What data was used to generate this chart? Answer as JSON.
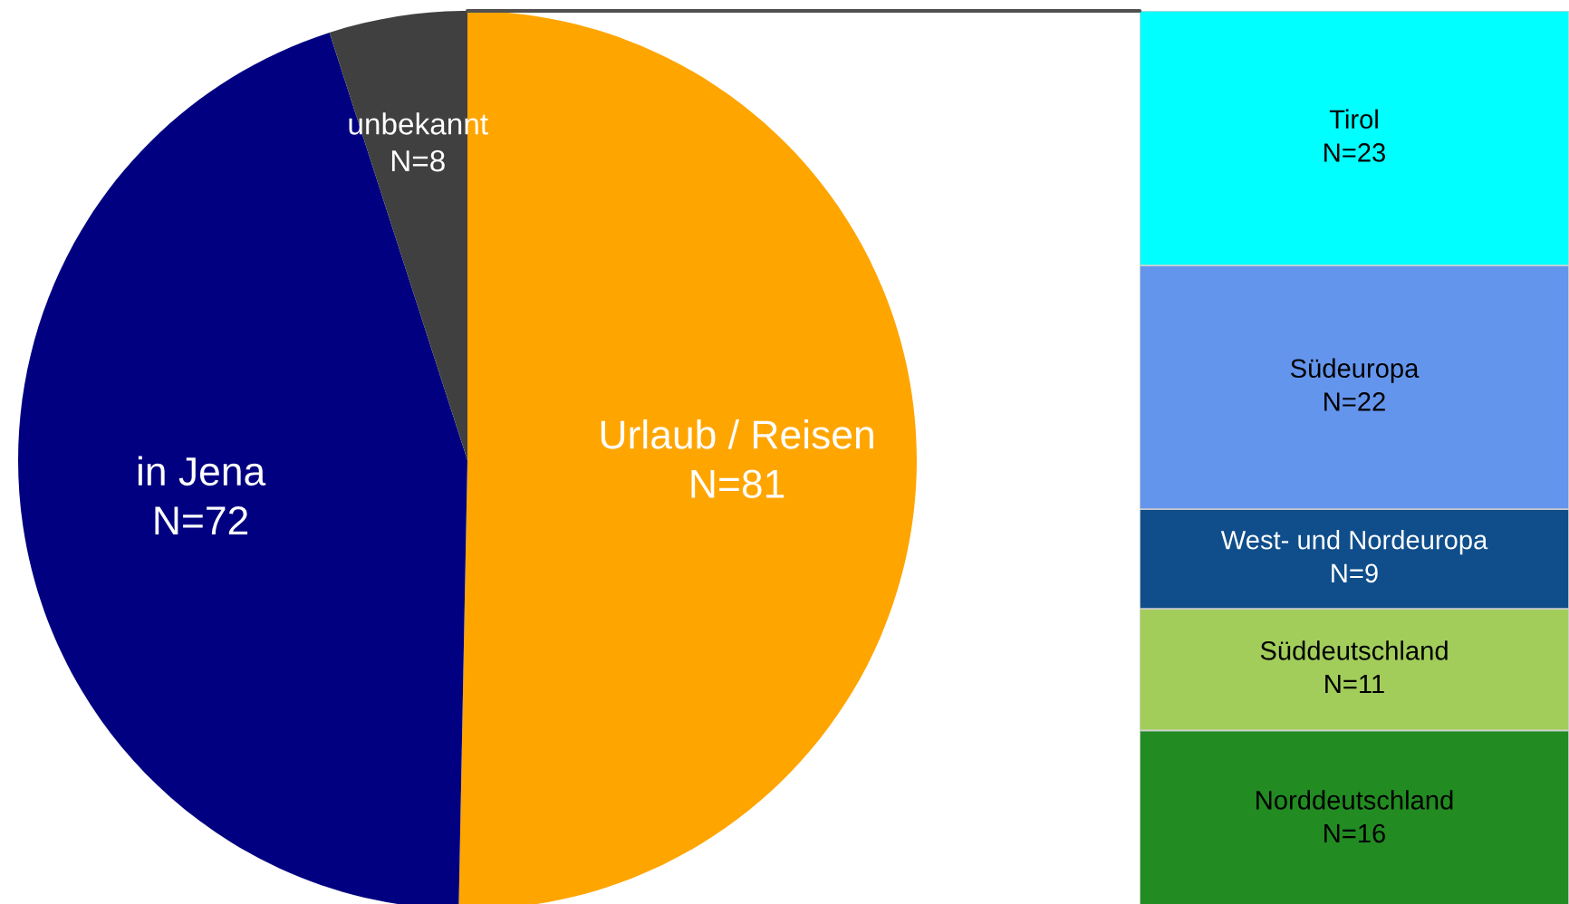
{
  "chart_data": [
    {
      "type": "pie",
      "categories": [
        "Urlaub / Reisen",
        "in Jena",
        "unbekannt"
      ],
      "values": [
        81,
        72,
        8
      ],
      "value_labels": [
        "N=81",
        "N=72",
        "N=8"
      ],
      "colors": [
        "#ffa500",
        "#000080",
        "#404040"
      ]
    },
    {
      "type": "bar",
      "stacked": true,
      "categories": [
        null
      ],
      "series": [
        {
          "name": "Norddeutschland",
          "color": "#228b22",
          "values": [
            16
          ],
          "value_labels": [
            "N=16"
          ]
        },
        {
          "name": "Süddeutschland",
          "color": "#a2cd5a",
          "values": [
            11
          ],
          "value_labels": [
            "N=11"
          ]
        },
        {
          "name": "West- und Nordeuropa",
          "color": "#104e8b",
          "values": [
            9
          ],
          "value_labels": [
            "N=9"
          ]
        },
        {
          "name": "Südeuropa",
          "color": "#6495ed",
          "values": [
            22
          ],
          "value_labels": [
            "N=22"
          ]
        },
        {
          "name": "Tirol",
          "color": "#00ffff",
          "values": [
            23
          ],
          "value_labels": [
            "N=23"
          ]
        }
      ]
    }
  ]
}
